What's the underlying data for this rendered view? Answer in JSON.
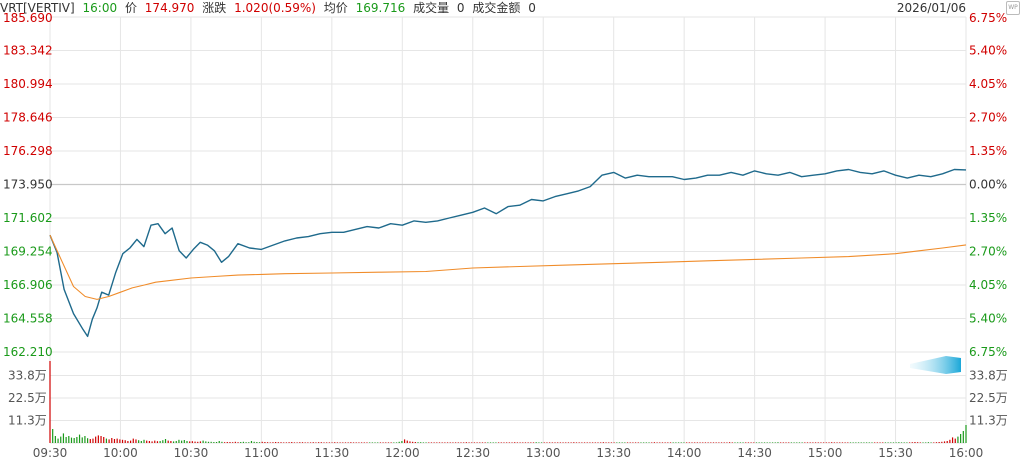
{
  "header": {
    "symbol": "VRT[VERTIV]",
    "time": "16:00",
    "price_label": "价",
    "price": "174.970",
    "change_label": "涨跌",
    "change": "1.020(0.59%)",
    "avg_label": "均价",
    "avg": "169.716",
    "volume_label": "成交量",
    "volume": "0",
    "amount_label": "成交金额",
    "amount": "0",
    "date": "2026/01/06"
  },
  "logo": "WP",
  "colors": {
    "price_line": "#1f6a8c",
    "avg_line": "#f08c2a",
    "up": "#d00000",
    "down": "#1a9a1a",
    "grid": "#e6e6e6",
    "base": "#c8c8c8"
  },
  "chart_data": {
    "type": "line",
    "x_ticks": [
      "09:30",
      "10:00",
      "10:30",
      "11:00",
      "11:30",
      "12:00",
      "12:30",
      "13:00",
      "13:30",
      "14:00",
      "14:30",
      "15:00",
      "15:30",
      "16:00"
    ],
    "y_left_ticks": [
      "185.690",
      "183.342",
      "180.994",
      "178.646",
      "176.298",
      "173.950",
      "171.602",
      "169.254",
      "166.906",
      "164.558",
      "162.210"
    ],
    "y_right_ticks": [
      "6.75%",
      "5.40%",
      "4.05%",
      "2.70%",
      "1.35%",
      "0.00%",
      "1.35%",
      "2.70%",
      "4.05%",
      "5.40%",
      "6.75%"
    ],
    "ylim": [
      162.21,
      185.69
    ],
    "prev_close": 173.95,
    "volume_ticks": [
      "33.8万",
      "22.5万",
      "11.3万"
    ],
    "volume_ylim": [
      0,
      450000
    ],
    "series": [
      {
        "name": "价",
        "minutes": [
          0,
          3,
          6,
          10,
          14,
          16,
          18,
          20,
          22,
          25,
          28,
          31,
          34,
          37,
          40,
          43,
          46,
          49,
          52,
          55,
          58,
          61,
          64,
          67,
          70,
          73,
          76,
          80,
          85,
          90,
          95,
          100,
          105,
          110,
          115,
          120,
          125,
          130,
          135,
          140,
          145,
          150,
          155,
          160,
          165,
          170,
          175,
          180,
          185,
          190,
          195,
          200,
          205,
          210,
          215,
          220,
          225,
          230,
          235,
          240,
          245,
          250,
          255,
          260,
          265,
          270,
          275,
          280,
          285,
          290,
          295,
          300,
          305,
          310,
          315,
          320,
          325,
          330,
          335,
          340,
          345,
          350,
          355,
          360,
          365,
          370,
          375,
          380,
          385,
          390
        ],
        "values": [
          170.4,
          169.2,
          166.6,
          164.9,
          163.8,
          163.3,
          164.5,
          165.3,
          166.4,
          166.2,
          167.8,
          169.1,
          169.5,
          170.1,
          169.6,
          171.1,
          171.2,
          170.5,
          170.9,
          169.3,
          168.8,
          169.4,
          169.9,
          169.7,
          169.3,
          168.5,
          168.9,
          169.8,
          169.5,
          169.4,
          169.7,
          170.0,
          170.2,
          170.3,
          170.5,
          170.6,
          170.6,
          170.8,
          171.0,
          170.9,
          171.2,
          171.1,
          171.4,
          171.3,
          171.4,
          171.6,
          171.8,
          172.0,
          172.3,
          171.9,
          172.4,
          172.5,
          172.9,
          172.8,
          173.1,
          173.3,
          173.5,
          173.8,
          174.6,
          174.8,
          174.4,
          174.6,
          174.5,
          174.5,
          174.5,
          174.3,
          174.4,
          174.6,
          174.6,
          174.8,
          174.6,
          174.9,
          174.7,
          174.6,
          174.8,
          174.5,
          174.6,
          174.7,
          174.9,
          175.0,
          174.8,
          174.7,
          174.9,
          174.6,
          174.4,
          174.6,
          174.5,
          174.7,
          175.0,
          174.97
        ]
      },
      {
        "name": "均价",
        "minutes": [
          0,
          5,
          10,
          15,
          20,
          25,
          30,
          35,
          40,
          45,
          50,
          60,
          70,
          80,
          90,
          100,
          120,
          140,
          160,
          180,
          200,
          220,
          240,
          260,
          280,
          300,
          320,
          340,
          360,
          370,
          380,
          390
        ],
        "values": [
          170.4,
          168.6,
          166.8,
          166.1,
          165.9,
          166.1,
          166.4,
          166.7,
          166.9,
          167.1,
          167.2,
          167.4,
          167.5,
          167.6,
          167.65,
          167.7,
          167.75,
          167.8,
          167.85,
          168.1,
          168.2,
          168.3,
          168.4,
          168.5,
          168.6,
          168.7,
          168.8,
          168.9,
          169.1,
          169.3,
          169.5,
          169.716
        ]
      }
    ],
    "volume_bars": [
      410000,
      70000,
      35000,
      22000,
      32000,
      48000,
      30000,
      35000,
      27000,
      25000,
      30000,
      42000,
      28000,
      35000,
      24000,
      20000,
      22000,
      32000,
      38000,
      35000,
      30000,
      22000,
      18000,
      25000,
      20000,
      22000,
      18000,
      16000,
      14000,
      10000,
      12000,
      22000,
      18000,
      14000,
      10000,
      16000,
      12000,
      10000,
      8000,
      12000,
      9000,
      10000,
      14000,
      20000,
      12000,
      10000,
      8000,
      10000,
      16000,
      12000,
      15000,
      10000,
      8000,
      9000,
      7000,
      6000,
      8000,
      12000,
      8000,
      6000,
      6000,
      5000,
      5000,
      10000,
      6000,
      4000,
      5000,
      5000,
      4000,
      6000,
      4000,
      5000,
      6000,
      4000,
      4000,
      10000,
      6000,
      5000,
      4000,
      6000,
      5000,
      4000,
      3000,
      4000,
      5000,
      4000,
      4000,
      3000,
      3000,
      4000,
      5000,
      3000,
      3000,
      4000,
      4000,
      3000,
      3000,
      3000,
      4000,
      3000,
      4000,
      4000,
      3000,
      3000,
      3000,
      3000,
      4000,
      3000,
      3000,
      3000,
      3000,
      3000,
      4000,
      3000,
      3000,
      3000,
      3000,
      3000,
      3000,
      3000,
      3000,
      3000,
      3000,
      3000,
      3000,
      3000,
      3000,
      3000,
      3000,
      3000,
      6000,
      10000,
      18000,
      12000,
      8000,
      6000,
      5000,
      4000,
      4000,
      3000,
      3000,
      3000,
      3000,
      3000,
      3000,
      3000,
      3000,
      3000,
      3000,
      3000,
      3000,
      3000,
      3000,
      3000,
      3000,
      4000,
      3000,
      3000,
      3000,
      3000,
      3000,
      3000,
      3000,
      3000,
      3000,
      3000,
      3000,
      3000,
      3000,
      3000,
      3000,
      3000,
      3000,
      4000,
      3000,
      3000,
      3000,
      3000,
      3000,
      3000,
      3000,
      4000,
      3000,
      3000,
      3000,
      3000,
      3000,
      3000,
      3000,
      3000,
      3000,
      3000,
      3000,
      3000,
      3000,
      4000,
      3000,
      3000,
      3000,
      3000,
      3000,
      3000,
      3000,
      3000,
      3000,
      3000,
      4000,
      3000,
      3000,
      3000,
      3000,
      3000,
      3000,
      3000,
      3000,
      3000,
      3000,
      3000,
      3000,
      3000,
      3000,
      3000,
      3000,
      3000,
      3000,
      4000,
      3000,
      3000,
      3000,
      3000,
      3000,
      3000,
      3000,
      3000,
      3000,
      3000,
      3000,
      3000,
      3000,
      3000,
      3000,
      3000,
      3000,
      3000,
      3000,
      3000,
      3000,
      3000,
      3000,
      3000,
      3000,
      3000,
      3000,
      4000,
      3000,
      3000,
      3000,
      3000,
      3000,
      3000,
      3000,
      3000,
      3000,
      3000,
      3000,
      3000,
      3000,
      3000,
      3000,
      3000,
      3000,
      4000,
      3000,
      3000,
      3000,
      3000,
      3000,
      3000,
      3000,
      3000,
      3000,
      3000,
      3000,
      3000,
      3000,
      3000,
      3000,
      3000,
      3000,
      3000,
      3000,
      4000,
      3000,
      3000,
      3000,
      3000,
      3000,
      3000,
      3000,
      3000,
      3000,
      3000,
      3000,
      3000,
      3000,
      3000,
      3000,
      3000,
      3000,
      3000,
      3000,
      3000,
      3000,
      3000,
      3000,
      3000,
      4000,
      3000,
      3000,
      3000,
      3000,
      4000,
      5000,
      4000,
      3000,
      3000,
      3000,
      4000,
      3000,
      3000,
      4000,
      5000,
      6000,
      8000,
      10000,
      16000,
      28000,
      22000,
      32000,
      45000,
      60000,
      90000
    ]
  }
}
